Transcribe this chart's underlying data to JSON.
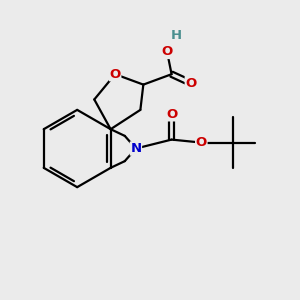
{
  "background_color": "#ebebeb",
  "atom_colors": {
    "O": "#cc0000",
    "N": "#0000cc",
    "H": "#4a8f8f",
    "C": "#000000"
  },
  "bond_color": "#000000",
  "bond_width": 1.6,
  "figsize": [
    3.0,
    3.0
  ],
  "dpi": 100
}
